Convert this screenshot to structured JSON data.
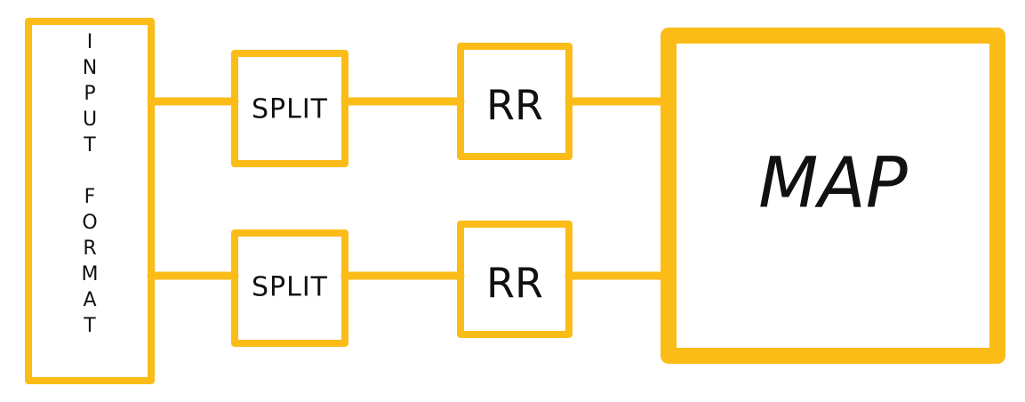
{
  "diagram": {
    "nodes": {
      "input_format": {
        "label": "INPUT FORMAT"
      },
      "split_top": {
        "label": "SPLIT"
      },
      "split_bottom": {
        "label": "SPLIT"
      },
      "rr_top": {
        "label": "RR"
      },
      "rr_bottom": {
        "label": "RR"
      },
      "map": {
        "label": "MAP"
      }
    },
    "edges": [
      {
        "from": "input_format",
        "to": "split_top"
      },
      {
        "from": "split_top",
        "to": "rr_top"
      },
      {
        "from": "rr_top",
        "to": "map"
      },
      {
        "from": "input_format",
        "to": "split_bottom"
      },
      {
        "from": "split_bottom",
        "to": "rr_bottom"
      },
      {
        "from": "rr_bottom",
        "to": "map"
      }
    ],
    "colors": {
      "box_stroke": "#fbbc18",
      "text": "#111111",
      "map_text": "#5b3a8a"
    }
  }
}
